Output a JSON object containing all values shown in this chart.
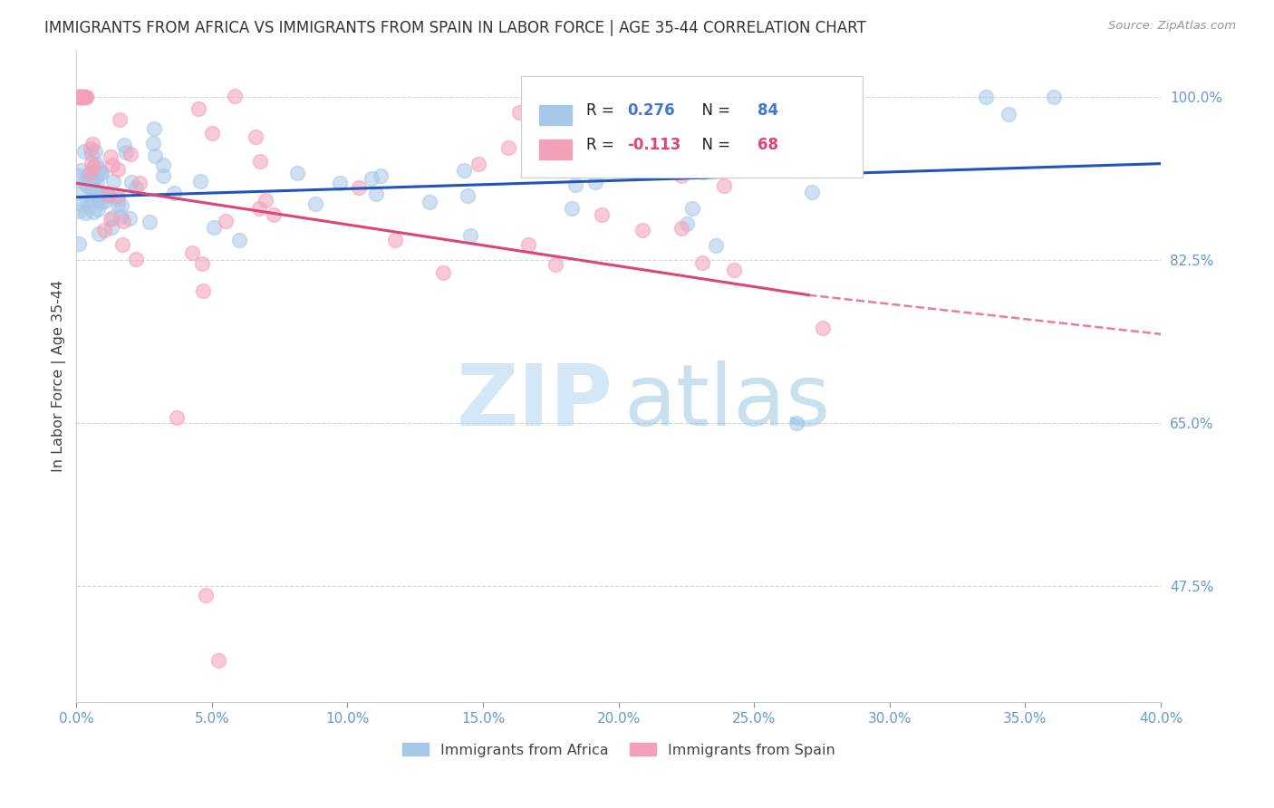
{
  "title": "IMMIGRANTS FROM AFRICA VS IMMIGRANTS FROM SPAIN IN LABOR FORCE | AGE 35-44 CORRELATION CHART",
  "source": "Source: ZipAtlas.com",
  "ylabel": "In Labor Force | Age 35-44",
  "legend_labels": [
    "Immigrants from Africa",
    "Immigrants from Spain"
  ],
  "xlim": [
    0.0,
    0.4
  ],
  "ylim": [
    0.35,
    1.05
  ],
  "ytick_right": [
    1.0,
    0.825,
    0.65,
    0.475
  ],
  "ytick_right_labels": [
    "100.0%",
    "82.5%",
    "65.0%",
    "47.5%"
  ],
  "xtick_vals": [
    0.0,
    0.05,
    0.1,
    0.15,
    0.2,
    0.25,
    0.3,
    0.35,
    0.4
  ],
  "xtick_labels": [
    "0.0%",
    "5.0%",
    "10.0%",
    "15.0%",
    "20.0%",
    "25.0%",
    "30.0%",
    "35.0%",
    "40.0%"
  ],
  "background_color": "#ffffff",
  "grid_color": "#cccccc",
  "title_color": "#333333",
  "source_color": "#999999",
  "blue_scatter_color": "#a8c8e8",
  "pink_scatter_color": "#f4a0b8",
  "blue_line_color": "#2255bb",
  "pink_line_color": "#dd4477",
  "tick_color": "#6699cc",
  "africa_R": 0.276,
  "africa_N": 84,
  "spain_R": -0.113,
  "spain_N": 68,
  "watermark_zip_color": "#b8d8f0",
  "watermark_atlas_color": "#88bbdd",
  "legend_R_N_color": "#1a1a2e",
  "legend_val_color": "#4477cc",
  "legend_spain_val_color": "#dd4477"
}
